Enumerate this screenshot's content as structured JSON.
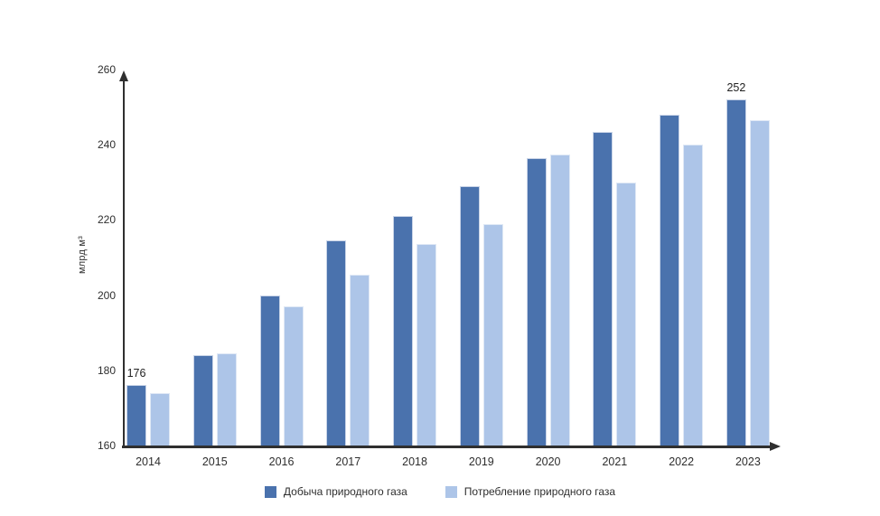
{
  "chart_data": {
    "type": "bar",
    "categories": [
      "2014",
      "2015",
      "2016",
      "2017",
      "2018",
      "2019",
      "2020",
      "2021",
      "2022",
      "2023"
    ],
    "series": [
      {
        "name": "Добыча природного газа",
        "color": "#4a72ad",
        "values": [
          176,
          184,
          200,
          214.5,
          221,
          229,
          236.5,
          243.5,
          248,
          252
        ]
      },
      {
        "name": "Потребление природного газа",
        "color": "#adc5e8",
        "values": [
          174,
          184.5,
          197,
          205.5,
          213.5,
          219,
          237.5,
          230,
          240,
          246.5
        ]
      }
    ],
    "title": "",
    "xlabel": "",
    "ylabel": "млрд м³",
    "ylim": [
      160,
      260
    ],
    "yticks": [
      160,
      180,
      200,
      220,
      240,
      260
    ],
    "grid": false,
    "legend_position": "bottom",
    "annotations": [
      {
        "series_index": 0,
        "category_index": 0,
        "text": "176"
      },
      {
        "series_index": 0,
        "category_index": 9,
        "text": "252"
      }
    ]
  },
  "colors": {
    "axis": "#2f2f2f",
    "text": "#2e2e2e",
    "background": "#ffffff"
  }
}
